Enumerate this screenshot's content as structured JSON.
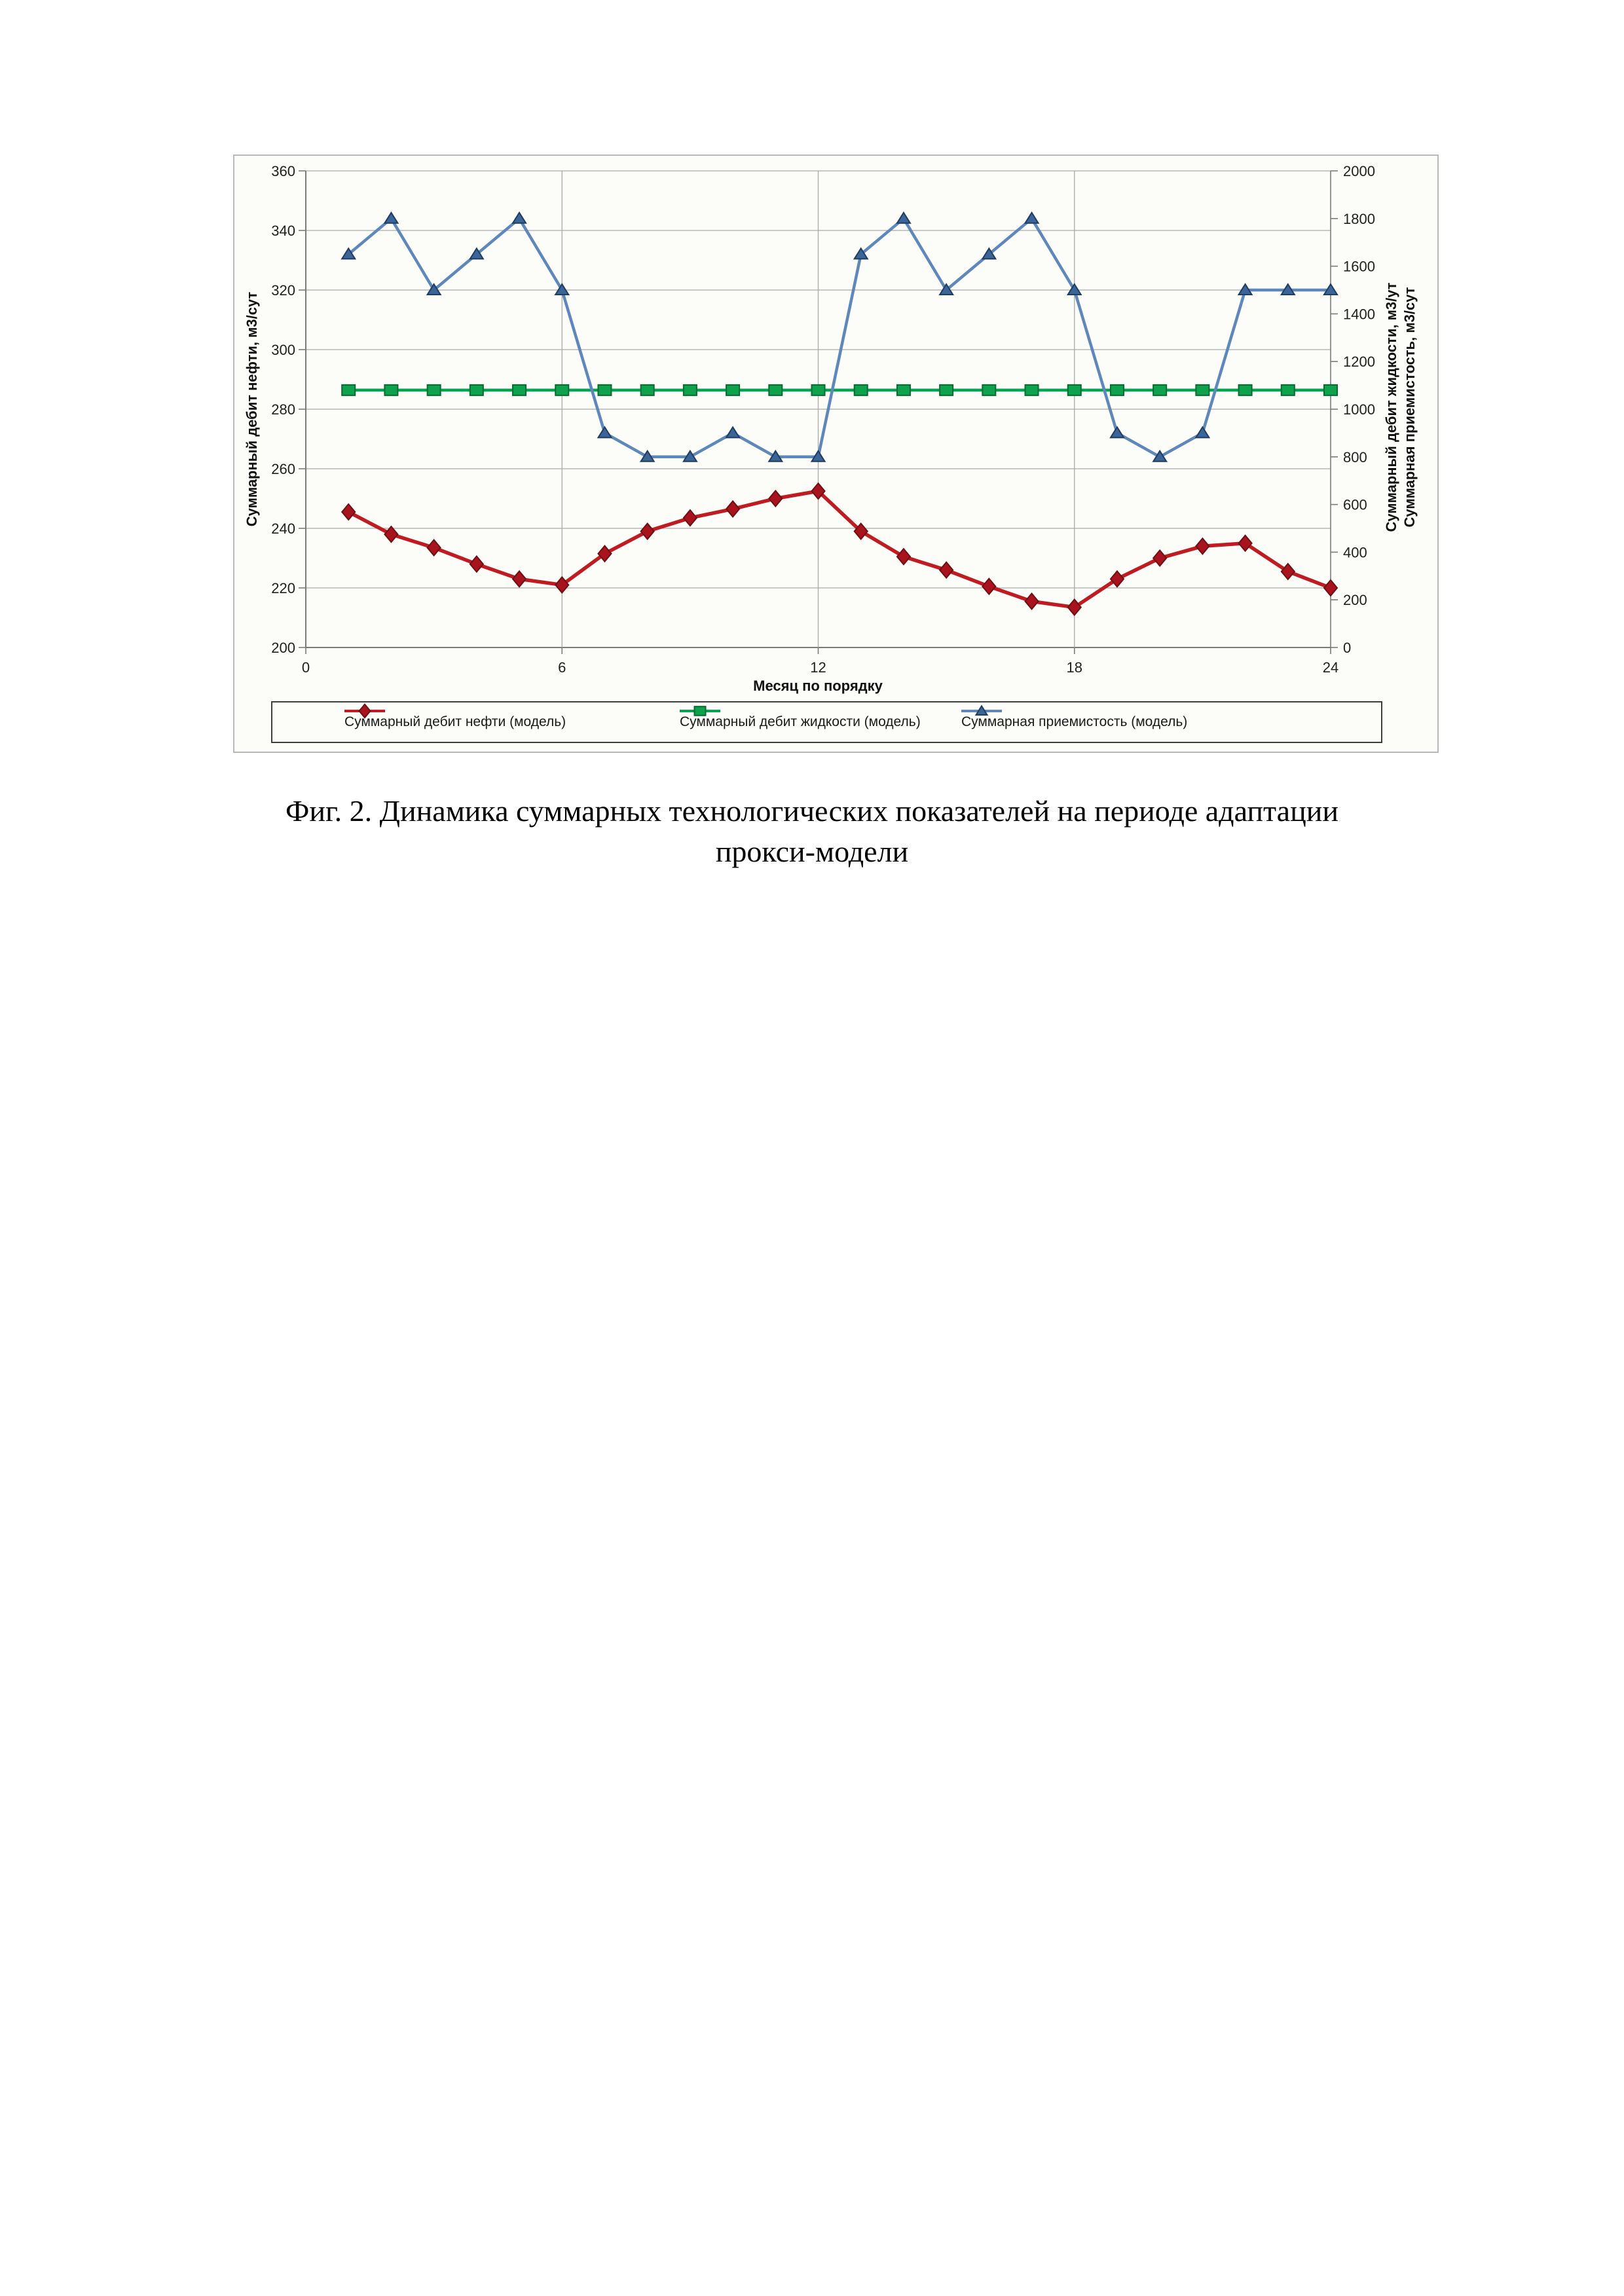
{
  "caption": {
    "line1": "Фиг. 2. Динамика суммарных технологических показателей на периоде адаптации",
    "line2": "прокси-модели"
  },
  "chart_data": {
    "type": "line",
    "x": [
      1,
      2,
      3,
      4,
      5,
      6,
      7,
      8,
      9,
      10,
      11,
      12,
      13,
      14,
      15,
      16,
      17,
      18,
      19,
      20,
      21,
      22,
      23,
      24
    ],
    "xlim": [
      0,
      24
    ],
    "x_ticks": [
      0,
      6,
      12,
      18,
      24
    ],
    "xlabel": "Месяц по порядку",
    "grid": "on",
    "legend_position": "bottom",
    "left_axis": {
      "label": "Суммарный дебит нефти, м3/сут",
      "min": 200,
      "max": 360,
      "step": 20
    },
    "right_axis": {
      "label_line1": "Суммарный дебит жидкости, м3/ут",
      "label_line2": "Суммарная приемистость, м3/сут",
      "min": 0,
      "max": 2000,
      "step": 200
    },
    "series": [
      {
        "name": "Суммарный дебит нефти (модель)",
        "axis": "left",
        "marker": "diamond",
        "line_color": "#C11B22",
        "line_width": 5.5,
        "marker_color": "#A8131E",
        "marker_edge": "#6E0F14",
        "values": [
          245.5,
          238,
          233.5,
          228,
          223,
          221,
          231.5,
          239,
          243.5,
          246.5,
          250,
          252.5,
          239,
          230.5,
          226,
          220.5,
          215.5,
          213.5,
          223,
          230,
          234,
          235,
          225.5,
          220
        ]
      },
      {
        "name": "Суммарный дебит жидкости (модель)",
        "axis": "right",
        "marker": "square",
        "line_color": "#00A64F",
        "line_width": 4.5,
        "marker_color": "#0EA24D",
        "marker_edge": "#076B31",
        "values": [
          1080,
          1080,
          1080,
          1080,
          1080,
          1080,
          1080,
          1080,
          1080,
          1080,
          1080,
          1080,
          1080,
          1080,
          1080,
          1080,
          1080,
          1080,
          1080,
          1080,
          1080,
          1080,
          1080,
          1080
        ]
      },
      {
        "name": "Суммарная приемистость (модель)",
        "axis": "right",
        "marker": "triangle",
        "line_color": "#5E88BB",
        "line_width": 4.5,
        "marker_color": "#3B6497",
        "marker_edge": "#1F3C63",
        "values": [
          1650,
          1800,
          1500,
          1650,
          1800,
          1500,
          900,
          800,
          800,
          900,
          800,
          800,
          1650,
          1800,
          1500,
          1650,
          1800,
          1500,
          900,
          800,
          900,
          1500,
          1500,
          1500
        ]
      }
    ]
  }
}
